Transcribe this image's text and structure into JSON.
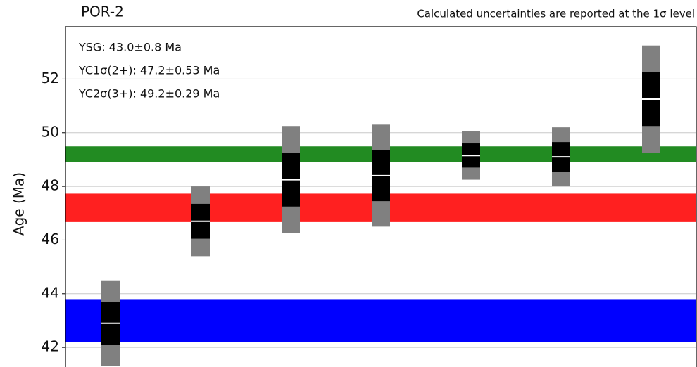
{
  "chart_data": {
    "type": "age-bars",
    "title": "POR-2",
    "subtitle": "Calculated uncertainties are reported at the 1σ level",
    "y_label": "Age (Ma)",
    "ylim": [
      41.27,
      53.95
    ],
    "yticks": [
      42,
      44,
      46,
      48,
      50,
      52
    ],
    "grid": true,
    "annotations": [
      "YSG: 43.0±0.8 Ma",
      "YC1σ(2+): 47.2±0.53 Ma",
      "YC2σ(3+): 49.2±0.29 Ma"
    ],
    "bands": [
      {
        "value": 43.0,
        "error": 0.8,
        "color": "#0000ff"
      },
      {
        "value": 47.2,
        "error": 0.53,
        "color": "#ff2020"
      },
      {
        "value": 49.2,
        "error": 0.29,
        "color": "#228b22"
      }
    ],
    "grains": {
      "values": [
        42.9,
        46.7,
        48.25,
        48.4,
        49.15,
        49.1,
        51.25
      ],
      "errors": [
        0.8,
        0.65,
        1.0,
        0.95,
        0.45,
        0.55,
        1.0
      ],
      "color_1s": "#000000",
      "color_2s": "#808080",
      "mean_color": "#ffffff"
    }
  }
}
